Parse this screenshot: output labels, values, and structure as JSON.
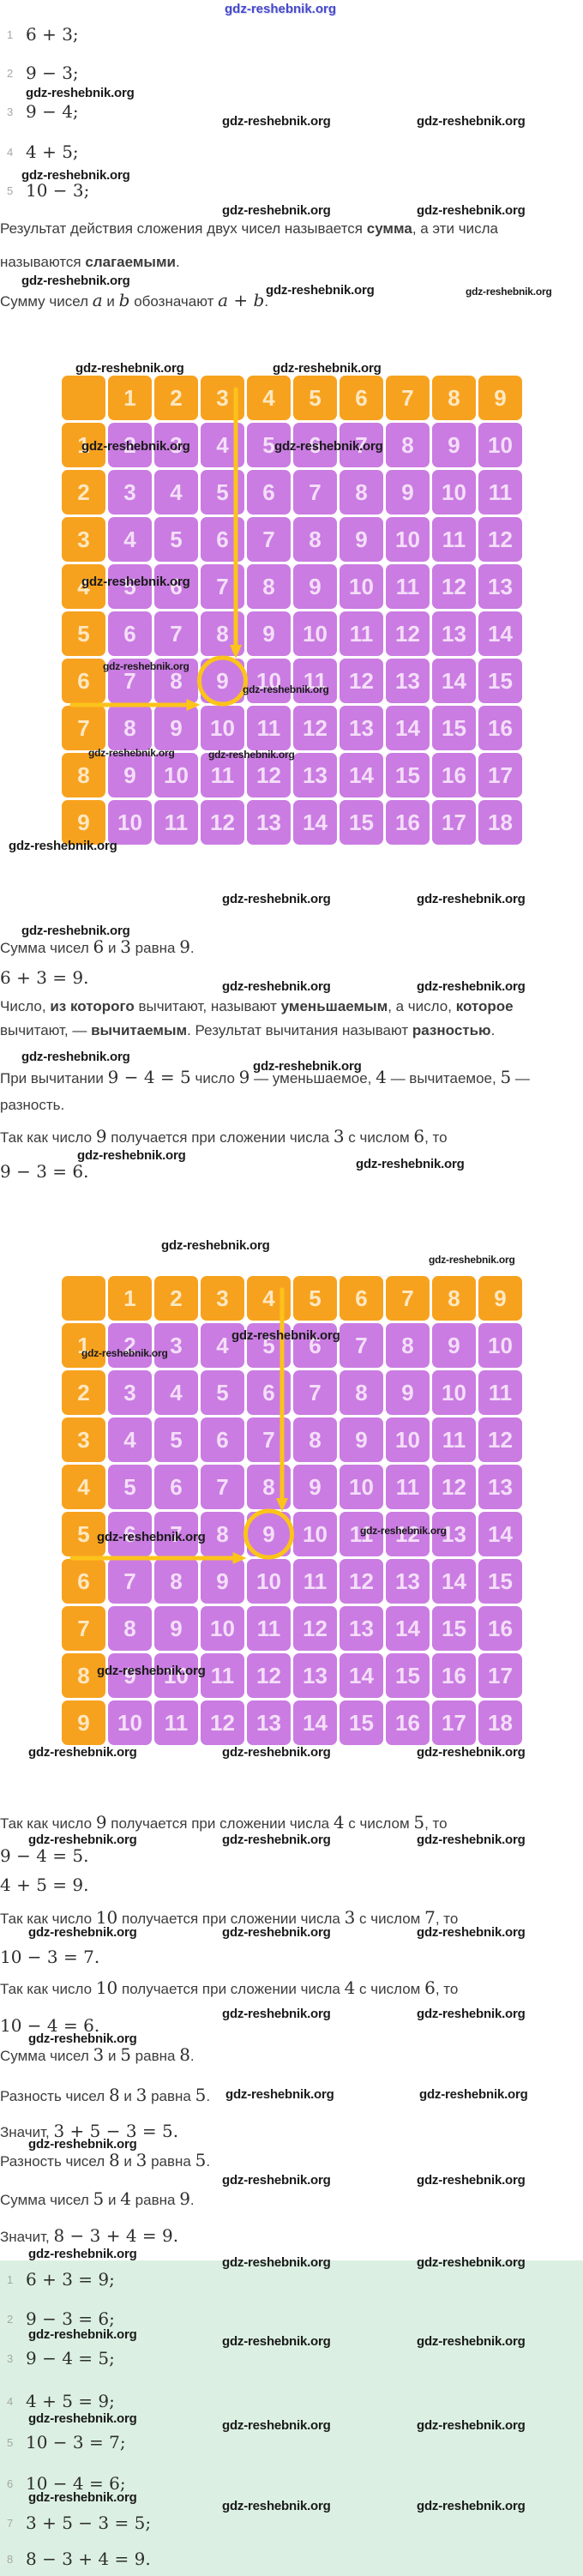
{
  "watermark_text": "gdz-reshebnik.org",
  "colors": {
    "table_orange": "#f7a21e",
    "table_purple": "#ca7ce2",
    "highlight_yellow": "#fcc31a",
    "answers_green_bg": "#dbf0e2",
    "top_watermark_blue": "#4649c8",
    "list_number_gray": "#a6a6a6"
  },
  "problems": [
    {
      "num": "1",
      "expr": "6 + 3;"
    },
    {
      "num": "2",
      "expr": "9 − 3;"
    },
    {
      "num": "3",
      "expr": "9 − 4;"
    },
    {
      "num": "4",
      "expr": "4 + 5;"
    },
    {
      "num": "5",
      "expr": "10 − 3;"
    }
  ],
  "lines": {
    "def_sum_1": [
      {
        "t": "Результат действия сложения двух чисел называется "
      },
      {
        "t": "сумма",
        "b": true
      },
      {
        "t": ", а эти числа"
      }
    ],
    "def_sum_2": [
      {
        "t": "называются "
      },
      {
        "t": "слагаемыми",
        "b": true
      },
      {
        "t": "."
      }
    ],
    "sum_notation": [
      {
        "t": "Сумму чисел "
      },
      {
        "t": "a",
        "i": true
      },
      {
        "t": " и "
      },
      {
        "t": "b",
        "i": true
      },
      {
        "t": " обозначают "
      },
      {
        "t": "a",
        "i": true
      },
      {
        "t": " + ",
        "m": true
      },
      {
        "t": "b",
        "i": true
      },
      {
        "t": "."
      }
    ],
    "sum_6_3": [
      {
        "t": "Сумма чисел "
      },
      {
        "t": "6",
        "m": true
      },
      {
        "t": " и "
      },
      {
        "t": "3",
        "m": true
      },
      {
        "t": " равна "
      },
      {
        "t": "9",
        "m": true
      },
      {
        "t": "."
      }
    ],
    "eq_6_3": [
      {
        "t": "6 + 3 = 9.",
        "m": true
      }
    ],
    "def_sub_1": [
      {
        "t": "Число, "
      },
      {
        "t": "из которого",
        "b": true
      },
      {
        "t": " вычитают, называют "
      },
      {
        "t": "уменьшаемым",
        "b": true
      },
      {
        "t": ", а число, "
      },
      {
        "t": "которое",
        "b": true
      }
    ],
    "def_sub_2": [
      {
        "t": "вычитают, — "
      },
      {
        "t": "вычитаемым",
        "b": true
      },
      {
        "t": ". Результат вычитания называют "
      },
      {
        "t": "разностью",
        "b": true
      },
      {
        "t": "."
      }
    ],
    "sub_example_1": [
      {
        "t": "При вычитании "
      },
      {
        "t": "9 − 4 = 5",
        "m": true
      },
      {
        "t": " число "
      },
      {
        "t": "9",
        "m": true
      },
      {
        "t": " — уменьшаемое, "
      },
      {
        "t": "4",
        "m": true
      },
      {
        "t": " — вычитаемое, "
      },
      {
        "t": "5",
        "m": true
      },
      {
        "t": " —"
      }
    ],
    "sub_example_2": [
      {
        "t": "разность."
      }
    ],
    "since_9_3_6": [
      {
        "t": "Так как число "
      },
      {
        "t": "9",
        "m": true
      },
      {
        "t": " получается при сложении числа "
      },
      {
        "t": "3",
        "m": true
      },
      {
        "t": " с числом "
      },
      {
        "t": "6",
        "m": true
      },
      {
        "t": ", то"
      }
    ],
    "eq_9_3": [
      {
        "t": "9 − 3 = 6.",
        "m": true
      }
    ],
    "since_9_4_5": [
      {
        "t": "Так как число "
      },
      {
        "t": "9",
        "m": true
      },
      {
        "t": " получается при сложении числа "
      },
      {
        "t": "4",
        "m": true
      },
      {
        "t": " с числом "
      },
      {
        "t": "5",
        "m": true
      },
      {
        "t": ", то"
      }
    ],
    "eq_9_4": [
      {
        "t": "9 − 4 = 5.",
        "m": true
      }
    ],
    "eq_4_5": [
      {
        "t": "4 + 5 = 9.",
        "m": true
      }
    ],
    "since_10_3_7": [
      {
        "t": "Так как число "
      },
      {
        "t": "10",
        "m": true
      },
      {
        "t": " получается при сложении числа "
      },
      {
        "t": "3",
        "m": true
      },
      {
        "t": " с числом "
      },
      {
        "t": "7",
        "m": true
      },
      {
        "t": ", то"
      }
    ],
    "eq_10_3": [
      {
        "t": "10 − 3 = 7.",
        "m": true
      }
    ],
    "since_10_4_6": [
      {
        "t": "Так как число "
      },
      {
        "t": "10",
        "m": true
      },
      {
        "t": " получается при сложении числа "
      },
      {
        "t": "4",
        "m": true
      },
      {
        "t": " с числом "
      },
      {
        "t": "6",
        "m": true
      },
      {
        "t": ", то"
      }
    ],
    "eq_10_4": [
      {
        "t": "10 − 4 = 6.",
        "m": true
      }
    ],
    "sum_3_5": [
      {
        "t": "Сумма чисел "
      },
      {
        "t": "3",
        "m": true
      },
      {
        "t": " и "
      },
      {
        "t": "5",
        "m": true
      },
      {
        "t": " равна "
      },
      {
        "t": "8",
        "m": true
      },
      {
        "t": "."
      }
    ],
    "diff_8_3_a": [
      {
        "t": "Разность чисел "
      },
      {
        "t": "8",
        "m": true
      },
      {
        "t": " и "
      },
      {
        "t": "3",
        "m": true
      },
      {
        "t": " равна "
      },
      {
        "t": "5",
        "m": true
      },
      {
        "t": "."
      }
    ],
    "hence_3_5_3": [
      {
        "t": "Значит, "
      },
      {
        "t": "3 + 5 − 3 = 5.",
        "m": true
      }
    ],
    "diff_8_3_b": [
      {
        "t": "Разность чисел "
      },
      {
        "t": "8",
        "m": true
      },
      {
        "t": " и "
      },
      {
        "t": "3",
        "m": true
      },
      {
        "t": " равна "
      },
      {
        "t": "5",
        "m": true
      },
      {
        "t": "."
      }
    ],
    "sum_5_4": [
      {
        "t": "Сумма чисел "
      },
      {
        "t": "5",
        "m": true
      },
      {
        "t": " и "
      },
      {
        "t": "4",
        "m": true
      },
      {
        "t": " равна "
      },
      {
        "t": "9",
        "m": true
      },
      {
        "t": "."
      }
    ],
    "hence_8_3_4": [
      {
        "t": "Значит, "
      },
      {
        "t": "8 − 3 + 4 = 9.",
        "m": true
      }
    ]
  },
  "addition_tables": [
    {
      "col_headers": [
        "1",
        "2",
        "3",
        "4",
        "5",
        "6",
        "7",
        "8",
        "9"
      ],
      "row_headers": [
        "1",
        "2",
        "3",
        "4",
        "5",
        "6",
        "7",
        "8",
        "9"
      ],
      "rows": [
        [
          2,
          3,
          4,
          5,
          6,
          7,
          8,
          9,
          10
        ],
        [
          3,
          4,
          5,
          6,
          7,
          8,
          9,
          10,
          11
        ],
        [
          4,
          5,
          6,
          7,
          8,
          9,
          10,
          11,
          12
        ],
        [
          5,
          6,
          7,
          8,
          9,
          10,
          11,
          12,
          13
        ],
        [
          6,
          7,
          8,
          9,
          10,
          11,
          12,
          13,
          14
        ],
        [
          7,
          8,
          9,
          10,
          11,
          12,
          13,
          14,
          15
        ],
        [
          8,
          9,
          10,
          11,
          12,
          13,
          14,
          15,
          16
        ],
        [
          9,
          10,
          11,
          12,
          13,
          14,
          15,
          16,
          17
        ],
        [
          10,
          11,
          12,
          13,
          14,
          15,
          16,
          17,
          18
        ]
      ],
      "highlight": {
        "row": 6,
        "col": 3,
        "value": 9,
        "illustrates": "6 + 3 = 9"
      }
    },
    {
      "col_headers": [
        "1",
        "2",
        "3",
        "4",
        "5",
        "6",
        "7",
        "8",
        "9"
      ],
      "row_headers": [
        "1",
        "2",
        "3",
        "4",
        "5",
        "6",
        "7",
        "8",
        "9"
      ],
      "rows": [
        [
          2,
          3,
          4,
          5,
          6,
          7,
          8,
          9,
          10
        ],
        [
          3,
          4,
          5,
          6,
          7,
          8,
          9,
          10,
          11
        ],
        [
          4,
          5,
          6,
          7,
          8,
          9,
          10,
          11,
          12
        ],
        [
          5,
          6,
          7,
          8,
          9,
          10,
          11,
          12,
          13
        ],
        [
          6,
          7,
          8,
          9,
          10,
          11,
          12,
          13,
          14
        ],
        [
          7,
          8,
          9,
          10,
          11,
          12,
          13,
          14,
          15
        ],
        [
          8,
          9,
          10,
          11,
          12,
          13,
          14,
          15,
          16
        ],
        [
          9,
          10,
          11,
          12,
          13,
          14,
          15,
          16,
          17
        ],
        [
          10,
          11,
          12,
          13,
          14,
          15,
          16,
          17,
          18
        ]
      ],
      "highlight": {
        "row": 5,
        "col": 4,
        "value": 9,
        "illustrates": "5 + 4 = 9"
      }
    }
  ],
  "answers": [
    {
      "num": "1",
      "expr": "6 + 3 = 9;"
    },
    {
      "num": "2",
      "expr": "9 − 3 = 6;"
    },
    {
      "num": "3",
      "expr": "9 − 4 = 5;"
    },
    {
      "num": "4",
      "expr": "4 + 5 = 9;"
    },
    {
      "num": "5",
      "expr": "10 − 3 = 7;"
    },
    {
      "num": "6",
      "expr": "10 − 4 = 6;"
    },
    {
      "num": "7",
      "expr": "3 + 5 − 3 = 5;"
    },
    {
      "num": "8",
      "expr": "8 − 3 + 4 = 9."
    }
  ]
}
